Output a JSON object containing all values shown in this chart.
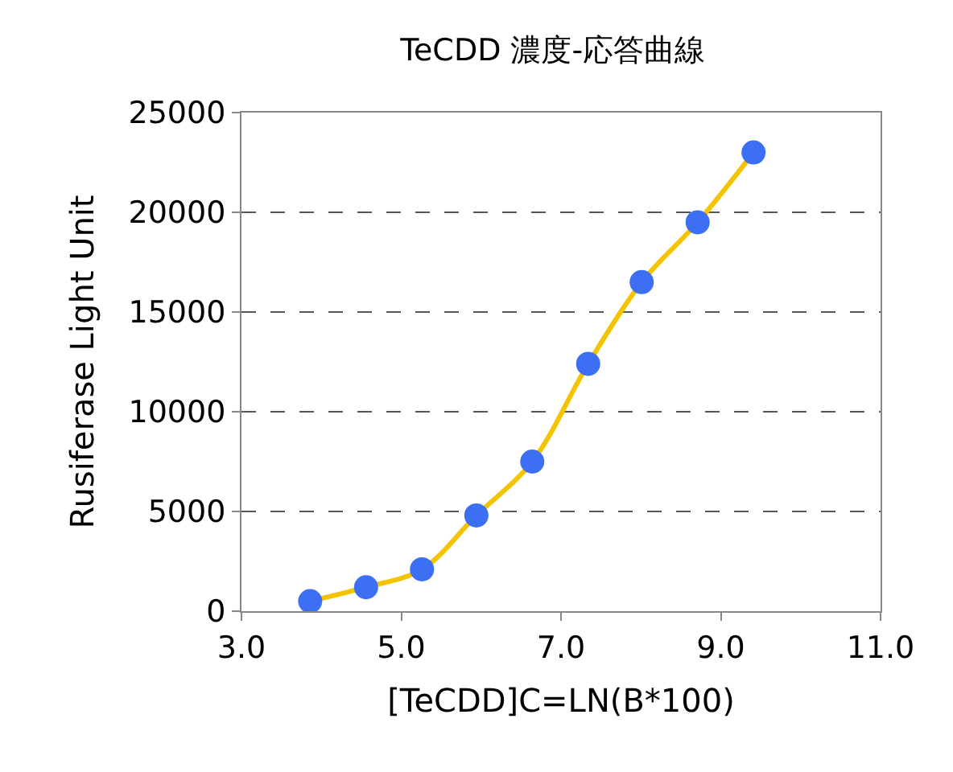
{
  "chart_data": {
    "type": "line",
    "title": "TeCDD 濃度-応答曲線",
    "xlabel": "[TeCDD]C=LN(B*100)",
    "ylabel": "Rusiferase Light Unit",
    "x": [
      3.86,
      4.56,
      5.26,
      5.94,
      6.64,
      7.34,
      8.01,
      8.71,
      9.41
    ],
    "series": [
      {
        "color": "#f5c400",
        "colors": [
          "#3d6ff5",
          "#3d6ff5",
          "#3d6ff5",
          "#3d6ff5",
          "#3d6ff5",
          "#3d6ff5",
          "#3d6ff5",
          "#3d6ff5",
          "#3d6ff5"
        ],
        "values": [
          500,
          1200,
          2100,
          4800,
          7500,
          12400,
          16500,
          19500,
          23000
        ]
      }
    ],
    "xlim": [
      3.0,
      11.0
    ],
    "xticks": [
      {
        "value": 3,
        "label": "3.0"
      },
      {
        "value": 5,
        "label": "5.0"
      },
      {
        "value": 7,
        "label": "7.0"
      },
      {
        "value": 9,
        "label": "9.0"
      },
      {
        "value": 11,
        "label": "11.0"
      }
    ],
    "ylim": [
      0,
      25000
    ],
    "yticks": [
      0,
      5000,
      10000,
      15000,
      20000,
      25000
    ],
    "grid": "y",
    "marker": "circle",
    "line_style": "solid"
  }
}
